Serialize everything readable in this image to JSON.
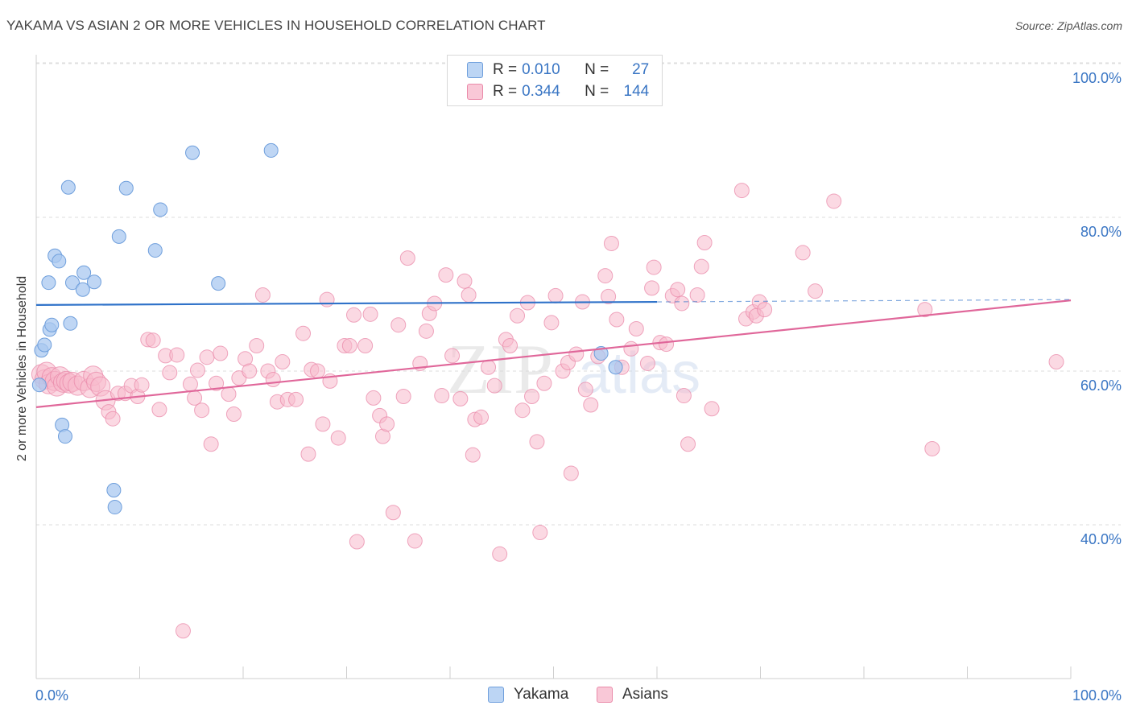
{
  "header": {
    "title": "YAKAMA VS ASIAN 2 OR MORE VEHICLES IN HOUSEHOLD CORRELATION CHART",
    "source": "Source: ZipAtlas.com"
  },
  "legend": {
    "rows": [
      {
        "r_label": "R = ",
        "r_value": "0.010",
        "n_label": "N = ",
        "n_value": "27"
      },
      {
        "r_label": "R = ",
        "r_value": "0.344",
        "n_label": "N = ",
        "n_value": "144"
      }
    ]
  },
  "bottom_legend": {
    "yakama": "Yakama",
    "asians": "Asians"
  },
  "watermark": {
    "zip": "ZIP",
    "atlas": "atlas"
  },
  "colors": {
    "yakama_fill": "#a9c8f0",
    "yakama_stroke": "#6f9fdc",
    "yakama_line": "#2f72c9",
    "asian_fill": "#f7b9cc",
    "asian_stroke": "#ea8aa9",
    "asian_line": "#e0679a",
    "axis_value": "#3a76c4",
    "grid": "#dddddd"
  },
  "chart_data": {
    "type": "scatter",
    "title": "YAKAMA VS ASIAN 2 OR MORE VEHICLES IN HOUSEHOLD CORRELATION CHART",
    "xlabel": "",
    "ylabel": "2 or more Vehicles in Household",
    "xlim": [
      0,
      100
    ],
    "ylim": [
      20,
      102
    ],
    "x_tick_labels": [
      "0.0%",
      "100.0%"
    ],
    "y_ticks": [
      40,
      60,
      80,
      100
    ],
    "y_tick_labels": [
      "40.0%",
      "60.0%",
      "80.0%",
      "100.0%"
    ],
    "grid": true,
    "legend_position": "top-center",
    "series": [
      {
        "name": "Yakama",
        "R": 0.01,
        "N": 27,
        "trend": {
          "x0": 0,
          "y0": 68.6,
          "x1": 60,
          "y1": 69.0,
          "dashed_to": 100,
          "dashed_y": 69.3
        },
        "points": [
          [
            0.3,
            58.2
          ],
          [
            0.5,
            62.7
          ],
          [
            0.8,
            63.4
          ],
          [
            1.2,
            71.5
          ],
          [
            1.3,
            65.4
          ],
          [
            1.5,
            66.0
          ],
          [
            1.8,
            75.0
          ],
          [
            2.2,
            74.3
          ],
          [
            2.5,
            53.0
          ],
          [
            2.8,
            51.5
          ],
          [
            3.1,
            83.9
          ],
          [
            3.3,
            66.2
          ],
          [
            3.5,
            71.5
          ],
          [
            4.5,
            70.6
          ],
          [
            4.6,
            72.8
          ],
          [
            5.6,
            71.6
          ],
          [
            7.5,
            44.5
          ],
          [
            7.6,
            42.3
          ],
          [
            8.0,
            77.5
          ],
          [
            8.7,
            83.8
          ],
          [
            11.5,
            75.7
          ],
          [
            12.0,
            81.0
          ],
          [
            15.1,
            88.4
          ],
          [
            17.6,
            71.4
          ],
          [
            22.7,
            88.7
          ],
          [
            54.6,
            62.3
          ],
          [
            56.0,
            60.5
          ]
        ]
      },
      {
        "name": "Asians",
        "R": 0.344,
        "N": 144,
        "trend": {
          "x0": 0,
          "y0": 55.3,
          "x1": 100,
          "y1": 69.2
        },
        "points": [
          [
            0.5,
            59.6
          ],
          [
            0.8,
            58.9
          ],
          [
            1.0,
            59.9
          ],
          [
            1.2,
            58.3
          ],
          [
            1.5,
            59.2
          ],
          [
            1.8,
            58.7
          ],
          [
            2.0,
            58.0
          ],
          [
            2.3,
            59.3
          ],
          [
            2.6,
            58.5
          ],
          [
            2.9,
            58.7
          ],
          [
            3.2,
            58.4
          ],
          [
            3.5,
            58.6
          ],
          [
            4.0,
            58.1
          ],
          [
            4.6,
            58.7
          ],
          [
            5.2,
            57.8
          ],
          [
            5.5,
            59.4
          ],
          [
            5.8,
            58.6
          ],
          [
            6.2,
            58.0
          ],
          [
            6.7,
            56.2
          ],
          [
            7.0,
            54.7
          ],
          [
            7.4,
            53.8
          ],
          [
            7.9,
            57.1
          ],
          [
            8.6,
            57.1
          ],
          [
            9.2,
            58.1
          ],
          [
            9.8,
            56.7
          ],
          [
            10.2,
            58.2
          ],
          [
            10.8,
            64.1
          ],
          [
            11.3,
            64.0
          ],
          [
            11.9,
            55.0
          ],
          [
            12.5,
            62.0
          ],
          [
            12.9,
            59.8
          ],
          [
            13.6,
            62.1
          ],
          [
            14.2,
            26.2
          ],
          [
            14.9,
            58.3
          ],
          [
            15.3,
            56.5
          ],
          [
            15.6,
            60.1
          ],
          [
            16.0,
            54.9
          ],
          [
            16.5,
            61.8
          ],
          [
            16.9,
            50.5
          ],
          [
            17.4,
            58.4
          ],
          [
            17.8,
            62.3
          ],
          [
            18.6,
            57.0
          ],
          [
            19.1,
            54.4
          ],
          [
            19.6,
            59.1
          ],
          [
            20.2,
            61.6
          ],
          [
            20.6,
            60.0
          ],
          [
            21.3,
            63.3
          ],
          [
            21.9,
            69.9
          ],
          [
            22.4,
            60.0
          ],
          [
            22.9,
            58.9
          ],
          [
            23.3,
            56.0
          ],
          [
            23.8,
            61.2
          ],
          [
            24.3,
            56.3
          ],
          [
            25.1,
            56.3
          ],
          [
            25.8,
            64.9
          ],
          [
            26.3,
            49.2
          ],
          [
            26.6,
            60.2
          ],
          [
            27.2,
            60.0
          ],
          [
            27.7,
            53.1
          ],
          [
            28.1,
            69.3
          ],
          [
            28.4,
            58.7
          ],
          [
            29.2,
            51.3
          ],
          [
            29.8,
            63.3
          ],
          [
            30.3,
            63.3
          ],
          [
            30.7,
            67.3
          ],
          [
            31.0,
            37.8
          ],
          [
            31.8,
            63.3
          ],
          [
            32.3,
            67.4
          ],
          [
            32.6,
            56.5
          ],
          [
            33.2,
            54.2
          ],
          [
            33.5,
            51.5
          ],
          [
            33.9,
            53.1
          ],
          [
            34.5,
            41.6
          ],
          [
            35.0,
            66.0
          ],
          [
            35.5,
            56.7
          ],
          [
            35.9,
            74.7
          ],
          [
            36.6,
            37.9
          ],
          [
            37.1,
            61.0
          ],
          [
            37.7,
            65.2
          ],
          [
            38.0,
            67.5
          ],
          [
            38.5,
            68.8
          ],
          [
            39.2,
            56.8
          ],
          [
            39.6,
            72.5
          ],
          [
            40.2,
            62.0
          ],
          [
            41.0,
            56.4
          ],
          [
            41.4,
            71.7
          ],
          [
            41.8,
            69.9
          ],
          [
            42.2,
            49.1
          ],
          [
            42.4,
            53.7
          ],
          [
            43.0,
            54.0
          ],
          [
            43.7,
            60.5
          ],
          [
            44.3,
            58.1
          ],
          [
            44.8,
            36.2
          ],
          [
            45.4,
            64.1
          ],
          [
            45.8,
            63.3
          ],
          [
            46.5,
            67.2
          ],
          [
            47.0,
            54.9
          ],
          [
            47.5,
            68.9
          ],
          [
            47.9,
            56.7
          ],
          [
            48.4,
            50.8
          ],
          [
            48.7,
            39.0
          ],
          [
            49.1,
            58.4
          ],
          [
            49.8,
            66.3
          ],
          [
            50.2,
            69.8
          ],
          [
            50.9,
            60.0
          ],
          [
            51.4,
            61.1
          ],
          [
            51.7,
            46.7
          ],
          [
            52.2,
            62.2
          ],
          [
            52.8,
            69.0
          ],
          [
            53.1,
            57.6
          ],
          [
            53.6,
            55.6
          ],
          [
            54.3,
            61.9
          ],
          [
            55.0,
            72.4
          ],
          [
            55.3,
            69.7
          ],
          [
            55.6,
            76.6
          ],
          [
            56.1,
            66.7
          ],
          [
            56.6,
            60.5
          ],
          [
            57.5,
            62.9
          ],
          [
            58.0,
            65.5
          ],
          [
            59.1,
            61.0
          ],
          [
            59.5,
            70.8
          ],
          [
            59.7,
            73.5
          ],
          [
            60.3,
            63.7
          ],
          [
            60.9,
            63.5
          ],
          [
            61.5,
            69.8
          ],
          [
            62.0,
            70.6
          ],
          [
            62.4,
            68.8
          ],
          [
            62.6,
            56.8
          ],
          [
            63.0,
            50.5
          ],
          [
            63.9,
            69.9
          ],
          [
            64.3,
            73.6
          ],
          [
            64.6,
            76.7
          ],
          [
            65.3,
            55.1
          ],
          [
            68.2,
            83.5
          ],
          [
            68.6,
            66.8
          ],
          [
            69.3,
            67.7
          ],
          [
            69.6,
            67.2
          ],
          [
            69.9,
            69.0
          ],
          [
            70.4,
            68.0
          ],
          [
            74.1,
            75.4
          ],
          [
            75.3,
            70.4
          ],
          [
            77.1,
            82.1
          ],
          [
            85.9,
            68.0
          ],
          [
            86.6,
            49.9
          ],
          [
            98.6,
            61.2
          ]
        ]
      }
    ]
  }
}
